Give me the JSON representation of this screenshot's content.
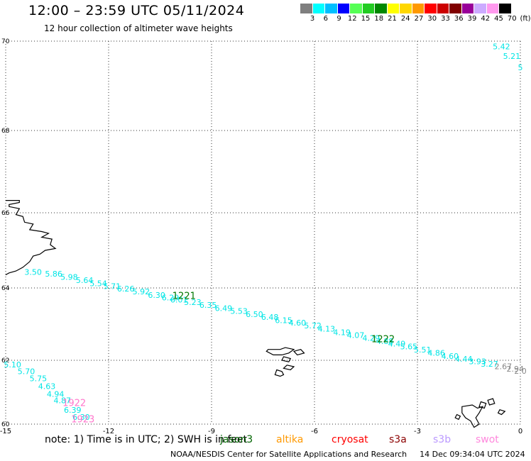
{
  "header": {
    "title": "12:00 – 23:59 UTC 05/11/2024",
    "subtitle": "12 hour collection of altimeter wave heights"
  },
  "scale": {
    "colors": [
      "#7f7f7f",
      "#00ffff",
      "#00bfff",
      "#0000ff",
      "#55ff55",
      "#22cc22",
      "#008800",
      "#ffff00",
      "#ffd700",
      "#ff9900",
      "#ff0000",
      "#cc0000",
      "#800000",
      "#990099",
      "#ccaaff",
      "#ff99ee",
      "#000000"
    ],
    "labels": [
      "3",
      "6",
      "9",
      "12",
      "15",
      "18",
      "21",
      "24",
      "27",
      "30",
      "33",
      "36",
      "39",
      "42",
      "45",
      "70",
      "(ft)"
    ]
  },
  "axes": {
    "lon_ticks": [
      -15,
      -12,
      -9,
      -6,
      -3,
      0
    ],
    "lon_labels": [
      "-15",
      "-12",
      "-9",
      "-6",
      "-3",
      "0"
    ],
    "lat_ticks": [
      60,
      62,
      64,
      66,
      68,
      70
    ],
    "lat_labels": [
      "60",
      "62",
      "64",
      "66",
      "68",
      "70"
    ]
  },
  "tracks": [
    {
      "color": "#00e5e5",
      "points": [
        {
          "lon": -14.2,
          "lat": 64.35,
          "v": "3.50"
        },
        {
          "lon": -13.6,
          "lat": 64.3,
          "v": "5.86"
        },
        {
          "lon": -13.15,
          "lat": 64.22,
          "v": "5.98"
        },
        {
          "lon": -12.7,
          "lat": 64.13,
          "v": "5.64"
        },
        {
          "lon": -12.3,
          "lat": 64.05,
          "v": "5.54"
        },
        {
          "lon": -11.9,
          "lat": 63.97,
          "v": "5.71"
        },
        {
          "lon": -11.5,
          "lat": 63.9,
          "v": "6.26"
        },
        {
          "lon": -11.05,
          "lat": 63.82,
          "v": "5.92"
        },
        {
          "lon": -10.6,
          "lat": 63.73,
          "v": "6.30"
        },
        {
          "lon": -10.2,
          "lat": 63.66,
          "v": "6.29"
        },
        {
          "lon": -9.95,
          "lat": 63.6,
          "v": "6.01"
        },
        {
          "lon": -9.55,
          "lat": 63.53,
          "v": "5.23"
        },
        {
          "lon": -9.1,
          "lat": 63.45,
          "v": "6.35"
        },
        {
          "lon": -8.65,
          "lat": 63.36,
          "v": "6.49"
        },
        {
          "lon": -8.2,
          "lat": 63.28,
          "v": "5.53"
        },
        {
          "lon": -7.75,
          "lat": 63.2,
          "v": "6.50"
        },
        {
          "lon": -7.3,
          "lat": 63.12,
          "v": "6.48"
        },
        {
          "lon": -6.9,
          "lat": 63.03,
          "v": "6.15"
        },
        {
          "lon": -6.5,
          "lat": 62.96,
          "v": "4.60"
        },
        {
          "lon": -6.05,
          "lat": 62.88,
          "v": "5.72"
        },
        {
          "lon": -5.65,
          "lat": 62.79,
          "v": "4.13"
        },
        {
          "lon": -5.2,
          "lat": 62.7,
          "v": "4.19"
        },
        {
          "lon": -4.8,
          "lat": 62.62,
          "v": "4.07"
        },
        {
          "lon": -4.35,
          "lat": 62.54,
          "v": "4.29"
        },
        {
          "lon": -3.95,
          "lat": 62.45,
          "v": "4.88"
        },
        {
          "lon": -3.6,
          "lat": 62.38,
          "v": "4.49"
        },
        {
          "lon": -3.25,
          "lat": 62.3,
          "v": "5.65"
        },
        {
          "lon": -2.85,
          "lat": 62.22,
          "v": "5.51"
        },
        {
          "lon": -2.45,
          "lat": 62.13,
          "v": "4.86"
        },
        {
          "lon": -2.05,
          "lat": 62.04,
          "v": "4.60"
        },
        {
          "lon": -1.65,
          "lat": 61.96,
          "v": "4.44"
        },
        {
          "lon": -1.25,
          "lat": 61.88,
          "v": "3.93"
        },
        {
          "lon": -0.9,
          "lat": 61.8,
          "v": "3.27"
        }
      ]
    },
    {
      "color": "#888888",
      "points": [
        {
          "lon": -0.5,
          "lat": 61.72,
          "v": "2.67"
        },
        {
          "lon": -0.15,
          "lat": 61.65,
          "v": "2.94"
        },
        {
          "lon": 0.0,
          "lat": 61.58,
          "v": "2.0"
        }
      ]
    },
    {
      "color": "#00e5e5",
      "points": [
        {
          "lon": -14.8,
          "lat": 61.78,
          "v": "5.10"
        },
        {
          "lon": -14.4,
          "lat": 61.57,
          "v": "5.70"
        },
        {
          "lon": -14.05,
          "lat": 61.34,
          "v": "5.75"
        },
        {
          "lon": -13.8,
          "lat": 61.1,
          "v": "4.63"
        },
        {
          "lon": -13.55,
          "lat": 60.86,
          "v": "4.94"
        },
        {
          "lon": -13.35,
          "lat": 60.66,
          "v": "4.87"
        },
        {
          "lon": -13.05,
          "lat": 60.36,
          "v": "6.39"
        },
        {
          "lon": -12.8,
          "lat": 60.13,
          "v": "6.30"
        }
      ]
    },
    {
      "color": "#00e5e5",
      "points": [
        {
          "lon": -0.55,
          "lat": 69.82,
          "v": "5.42"
        },
        {
          "lon": -0.25,
          "lat": 69.6,
          "v": "5.21"
        },
        {
          "lon": 0.0,
          "lat": 69.35,
          "v": "5"
        }
      ]
    }
  ],
  "time_labels": [
    {
      "lon": -9.8,
      "lat": 63.7,
      "text": "1221",
      "color": "#007700"
    },
    {
      "lon": -4.0,
      "lat": 62.5,
      "text": "1222",
      "color": "#007700"
    },
    {
      "lon": -13.0,
      "lat": 60.57,
      "text": "1922",
      "color": "#ff77cc"
    },
    {
      "lon": -12.75,
      "lat": 60.06,
      "text": "1923",
      "color": "#ff77cc"
    }
  ],
  "land": {
    "iceland_east": [
      [
        -15,
        66.3
      ],
      [
        -14.6,
        66.3
      ],
      [
        -14.6,
        66.25
      ],
      [
        -14.9,
        66.2
      ],
      [
        -14.9,
        66.15
      ],
      [
        -14.6,
        66.1
      ],
      [
        -14.7,
        65.95
      ],
      [
        -14.5,
        65.9
      ],
      [
        -14.45,
        65.75
      ],
      [
        -14.2,
        65.7
      ],
      [
        -14.3,
        65.55
      ],
      [
        -13.95,
        65.5
      ],
      [
        -13.75,
        65.45
      ],
      [
        -13.95,
        65.35
      ],
      [
        -13.65,
        65.3
      ],
      [
        -13.7,
        65.15
      ],
      [
        -13.55,
        65.05
      ],
      [
        -13.85,
        65.0
      ],
      [
        -14.0,
        64.9
      ],
      [
        -14.2,
        64.85
      ],
      [
        -14.3,
        64.7
      ],
      [
        -14.5,
        64.55
      ],
      [
        -14.7,
        64.45
      ],
      [
        -14.9,
        64.4
      ],
      [
        -15,
        64.35
      ]
    ],
    "faroes": [
      [
        [
          -7.35,
          62.3
        ],
        [
          -7.0,
          62.3
        ],
        [
          -6.85,
          62.35
        ],
        [
          -6.6,
          62.3
        ],
        [
          -6.75,
          62.2
        ],
        [
          -6.95,
          62.15
        ],
        [
          -7.2,
          62.15
        ],
        [
          -7.4,
          62.25
        ],
        [
          -7.35,
          62.3
        ]
      ],
      [
        [
          -6.9,
          62.1
        ],
        [
          -6.7,
          62.05
        ],
        [
          -6.75,
          61.95
        ],
        [
          -6.95,
          62.0
        ],
        [
          -6.9,
          62.1
        ]
      ],
      [
        [
          -6.8,
          61.85
        ],
        [
          -6.6,
          61.8
        ],
        [
          -6.7,
          61.7
        ],
        [
          -6.9,
          61.75
        ],
        [
          -6.8,
          61.85
        ]
      ],
      [
        [
          -7.1,
          61.7
        ],
        [
          -6.95,
          61.65
        ],
        [
          -6.9,
          61.55
        ],
        [
          -7.0,
          61.5
        ],
        [
          -7.15,
          61.55
        ],
        [
          -7.1,
          61.7
        ]
      ],
      [
        [
          -6.6,
          62.25
        ],
        [
          -6.4,
          62.3
        ],
        [
          -6.3,
          62.2
        ],
        [
          -6.5,
          62.15
        ],
        [
          -6.6,
          62.25
        ]
      ]
    ],
    "shetland": [
      [
        [
          -1.7,
          60.55
        ],
        [
          -1.4,
          60.6
        ],
        [
          -1.25,
          60.5
        ],
        [
          -1.1,
          60.55
        ],
        [
          -1.2,
          60.35
        ],
        [
          -1.3,
          60.2
        ],
        [
          -1.2,
          60.0
        ],
        [
          -1.35,
          59.9
        ],
        [
          -1.45,
          60.1
        ],
        [
          -1.6,
          60.2
        ],
        [
          -1.7,
          60.35
        ],
        [
          -1.7,
          60.55
        ]
      ],
      [
        [
          -0.95,
          60.75
        ],
        [
          -0.8,
          60.8
        ],
        [
          -0.75,
          60.65
        ],
        [
          -0.9,
          60.6
        ],
        [
          -0.95,
          60.75
        ]
      ],
      [
        [
          -1.15,
          60.7
        ],
        [
          -1.0,
          60.65
        ],
        [
          -1.05,
          60.5
        ],
        [
          -1.2,
          60.55
        ],
        [
          -1.15,
          60.7
        ]
      ],
      [
        [
          -1.85,
          60.3
        ],
        [
          -1.75,
          60.25
        ],
        [
          -1.8,
          60.15
        ],
        [
          -1.9,
          60.2
        ],
        [
          -1.85,
          60.3
        ]
      ],
      [
        [
          -0.6,
          60.45
        ],
        [
          -0.45,
          60.4
        ],
        [
          -0.55,
          60.3
        ],
        [
          -0.65,
          60.35
        ],
        [
          -0.6,
          60.45
        ]
      ]
    ]
  },
  "footer": {
    "note": "note:  1) Time is in UTC;  2) SWH is in feet",
    "legend": [
      {
        "label": "jason3",
        "color": "#006400"
      },
      {
        "label": "altika",
        "color": "#ff9900"
      },
      {
        "label": "cryosat",
        "color": "#ff0000"
      },
      {
        "label": "s3a",
        "color": "#8b0000"
      },
      {
        "label": "s3b",
        "color": "#bb99ff"
      },
      {
        "label": "swot",
        "color": "#ff88dd"
      }
    ],
    "credit": "NOAA/NESDIS Center for Satellite Applications and Research",
    "timestamp": "14 Dec 09:34:04 UTC 2024"
  }
}
